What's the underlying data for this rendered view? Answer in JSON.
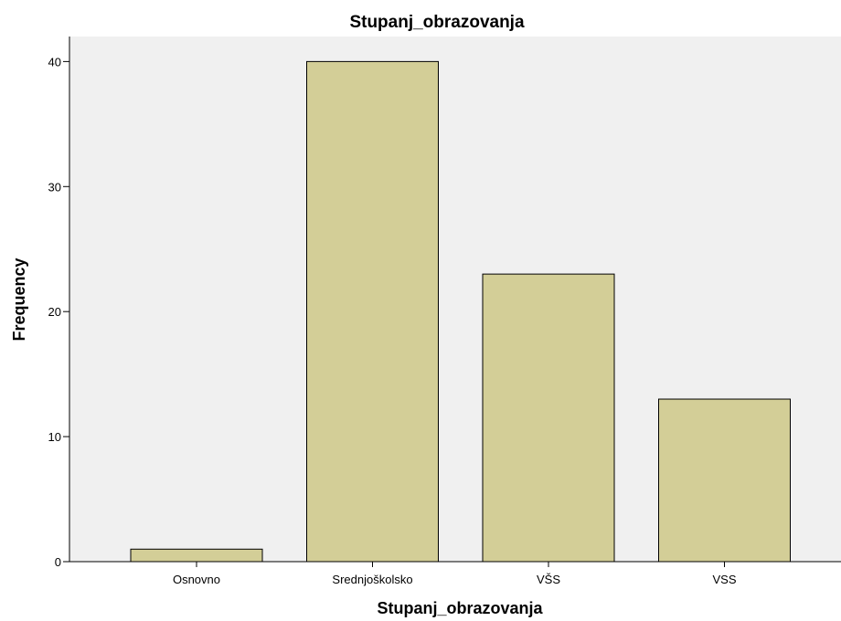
{
  "chart_data": {
    "type": "bar",
    "title": "Stupanj_obrazovanja",
    "xlabel": "Stupanj_obrazovanja",
    "ylabel": "Frequency",
    "categories": [
      "Osnovno",
      "Srednjoškolsko",
      "VŠS",
      "VSS"
    ],
    "values": [
      1,
      40,
      23,
      13
    ],
    "ylim": [
      0,
      42
    ],
    "yticks": [
      0,
      10,
      20,
      30,
      40
    ],
    "grid": false,
    "colors": {
      "plot_background": "#f0f0f0",
      "bar_fill": "#d3ce97",
      "bar_stroke": "#000000"
    }
  }
}
